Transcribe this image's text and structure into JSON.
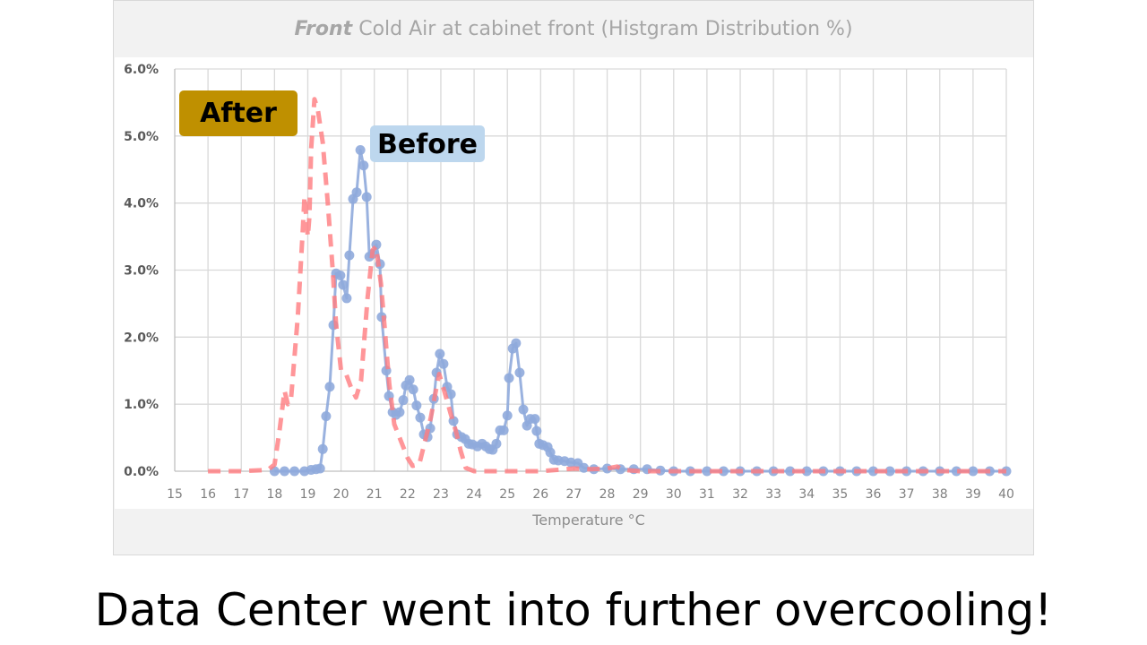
{
  "chart_data": {
    "type": "line",
    "title_bold": "Front",
    "title": "Cold Air at cabinet front (Histgram Distribution %)",
    "xlabel": "Temperature °C",
    "ylabel": "",
    "xlim": [
      15,
      40
    ],
    "ylim": [
      0,
      6
    ],
    "x_ticks": [
      "15",
      "16",
      "17",
      "18",
      "19",
      "20",
      "21",
      "22",
      "23",
      "24",
      "25",
      "26",
      "27",
      "28",
      "29",
      "30",
      "31",
      "32",
      "33",
      "34",
      "35",
      "36",
      "37",
      "38",
      "39",
      "40"
    ],
    "y_ticks": [
      "0.0%",
      "1.0%",
      "2.0%",
      "3.0%",
      "4.0%",
      "5.0%",
      "6.0%"
    ],
    "grid": true,
    "series": [
      {
        "name": "Before",
        "color": "#8faadc",
        "style": "solid-markers",
        "points": [
          [
            18.0,
            0
          ],
          [
            18.3,
            0
          ],
          [
            18.6,
            0
          ],
          [
            18.9,
            0
          ],
          [
            19.1,
            0.02
          ],
          [
            19.25,
            0.03
          ],
          [
            19.37,
            0.04
          ],
          [
            19.45,
            0.33
          ],
          [
            19.55,
            0.82
          ],
          [
            19.66,
            1.26
          ],
          [
            19.77,
            2.18
          ],
          [
            19.85,
            2.95
          ],
          [
            19.98,
            2.92
          ],
          [
            20.06,
            2.78
          ],
          [
            20.17,
            2.58
          ],
          [
            20.25,
            3.22
          ],
          [
            20.36,
            4.06
          ],
          [
            20.47,
            4.16
          ],
          [
            20.58,
            4.79
          ],
          [
            20.68,
            4.56
          ],
          [
            20.77,
            4.09
          ],
          [
            20.85,
            3.2
          ],
          [
            20.95,
            3.24
          ],
          [
            21.06,
            3.38
          ],
          [
            21.17,
            3.09
          ],
          [
            21.22,
            2.3
          ],
          [
            21.36,
            1.5
          ],
          [
            21.44,
            1.12
          ],
          [
            21.55,
            0.88
          ],
          [
            21.65,
            0.84
          ],
          [
            21.76,
            0.88
          ],
          [
            21.87,
            1.06
          ],
          [
            21.95,
            1.28
          ],
          [
            22.06,
            1.36
          ],
          [
            22.17,
            1.22
          ],
          [
            22.27,
            0.98
          ],
          [
            22.38,
            0.8
          ],
          [
            22.49,
            0.55
          ],
          [
            22.6,
            0.51
          ],
          [
            22.68,
            0.64
          ],
          [
            22.79,
            1.08
          ],
          [
            22.87,
            1.47
          ],
          [
            22.97,
            1.75
          ],
          [
            23.08,
            1.6
          ],
          [
            23.19,
            1.26
          ],
          [
            23.3,
            1.15
          ],
          [
            23.38,
            0.75
          ],
          [
            23.49,
            0.55
          ],
          [
            23.62,
            0.51
          ],
          [
            23.73,
            0.48
          ],
          [
            23.84,
            0.41
          ],
          [
            23.95,
            0.4
          ],
          [
            24.1,
            0.37
          ],
          [
            24.24,
            0.41
          ],
          [
            24.35,
            0.37
          ],
          [
            24.46,
            0.33
          ],
          [
            24.56,
            0.32
          ],
          [
            24.67,
            0.41
          ],
          [
            24.78,
            0.61
          ],
          [
            24.89,
            0.61
          ],
          [
            25.0,
            0.83
          ],
          [
            25.05,
            1.39
          ],
          [
            25.16,
            1.83
          ],
          [
            25.26,
            1.91
          ],
          [
            25.37,
            1.47
          ],
          [
            25.48,
            0.92
          ],
          [
            25.59,
            0.68
          ],
          [
            25.69,
            0.78
          ],
          [
            25.83,
            0.78
          ],
          [
            25.88,
            0.6
          ],
          [
            25.96,
            0.41
          ],
          [
            26.07,
            0.39
          ],
          [
            26.21,
            0.36
          ],
          [
            26.29,
            0.28
          ],
          [
            26.4,
            0.17
          ],
          [
            26.53,
            0.16
          ],
          [
            26.72,
            0.15
          ],
          [
            26.91,
            0.13
          ],
          [
            27.12,
            0.12
          ],
          [
            27.3,
            0.05
          ],
          [
            27.6,
            0.03
          ],
          [
            28.0,
            0.04
          ],
          [
            28.4,
            0.03
          ],
          [
            28.8,
            0.03
          ],
          [
            29.2,
            0.03
          ],
          [
            29.6,
            0.01
          ],
          [
            30,
            0
          ],
          [
            30.5,
            0
          ],
          [
            31,
            0
          ],
          [
            31.5,
            0
          ],
          [
            32,
            0
          ],
          [
            32.5,
            0
          ],
          [
            33,
            0
          ],
          [
            33.5,
            0
          ],
          [
            34,
            0
          ],
          [
            34.5,
            0
          ],
          [
            35,
            0
          ],
          [
            35.5,
            0
          ],
          [
            36,
            0
          ],
          [
            36.5,
            0
          ],
          [
            37,
            0
          ],
          [
            37.5,
            0
          ],
          [
            38,
            0
          ],
          [
            38.5,
            0
          ],
          [
            39,
            0
          ],
          [
            39.5,
            0
          ],
          [
            40,
            0
          ]
        ]
      },
      {
        "name": "After",
        "color": "#ff7c80",
        "style": "dashed",
        "points": [
          [
            16,
            0
          ],
          [
            17,
            0
          ],
          [
            17.8,
            0.02
          ],
          [
            18.0,
            0.1
          ],
          [
            18.15,
            0.6
          ],
          [
            18.3,
            1.2
          ],
          [
            18.4,
            1.0
          ],
          [
            18.5,
            1.1
          ],
          [
            18.7,
            2.3
          ],
          [
            18.85,
            3.6
          ],
          [
            18.9,
            4.1
          ],
          [
            19.0,
            3.5
          ],
          [
            19.05,
            3.8
          ],
          [
            19.1,
            4.8
          ],
          [
            19.2,
            5.55
          ],
          [
            19.3,
            5.4
          ],
          [
            19.45,
            4.9
          ],
          [
            19.6,
            4.0
          ],
          [
            19.75,
            3.0
          ],
          [
            19.85,
            2.2
          ],
          [
            20.0,
            1.5
          ],
          [
            20.15,
            1.45
          ],
          [
            20.3,
            1.25
          ],
          [
            20.45,
            1.1
          ],
          [
            20.6,
            1.35
          ],
          [
            20.8,
            2.6
          ],
          [
            20.95,
            3.3
          ],
          [
            21.05,
            3.35
          ],
          [
            21.2,
            2.8
          ],
          [
            21.3,
            2.2
          ],
          [
            21.45,
            1.3
          ],
          [
            21.6,
            0.7
          ],
          [
            21.8,
            0.45
          ],
          [
            22.0,
            0.2
          ],
          [
            22.15,
            0.08
          ],
          [
            22.35,
            0.1
          ],
          [
            22.5,
            0.4
          ],
          [
            22.7,
            0.8
          ],
          [
            22.85,
            1.2
          ],
          [
            22.95,
            1.45
          ],
          [
            23.1,
            1.2
          ],
          [
            23.3,
            0.85
          ],
          [
            23.45,
            0.6
          ],
          [
            23.6,
            0.3
          ],
          [
            23.75,
            0.05
          ],
          [
            24,
            0
          ],
          [
            25,
            0
          ],
          [
            26,
            0
          ],
          [
            26.5,
            0.02
          ],
          [
            27,
            0.04
          ],
          [
            27.5,
            0.03
          ],
          [
            28,
            0.04
          ],
          [
            28.3,
            0.07
          ],
          [
            28.5,
            0.02
          ],
          [
            29,
            0
          ],
          [
            30,
            0
          ],
          [
            35,
            0
          ],
          [
            40,
            0
          ]
        ]
      }
    ],
    "annotations": [
      {
        "text": "After",
        "color": "#bf9000"
      },
      {
        "text": "Before",
        "color": "#bdd7ee"
      }
    ]
  },
  "caption": "Data Center went into further overcooling!"
}
